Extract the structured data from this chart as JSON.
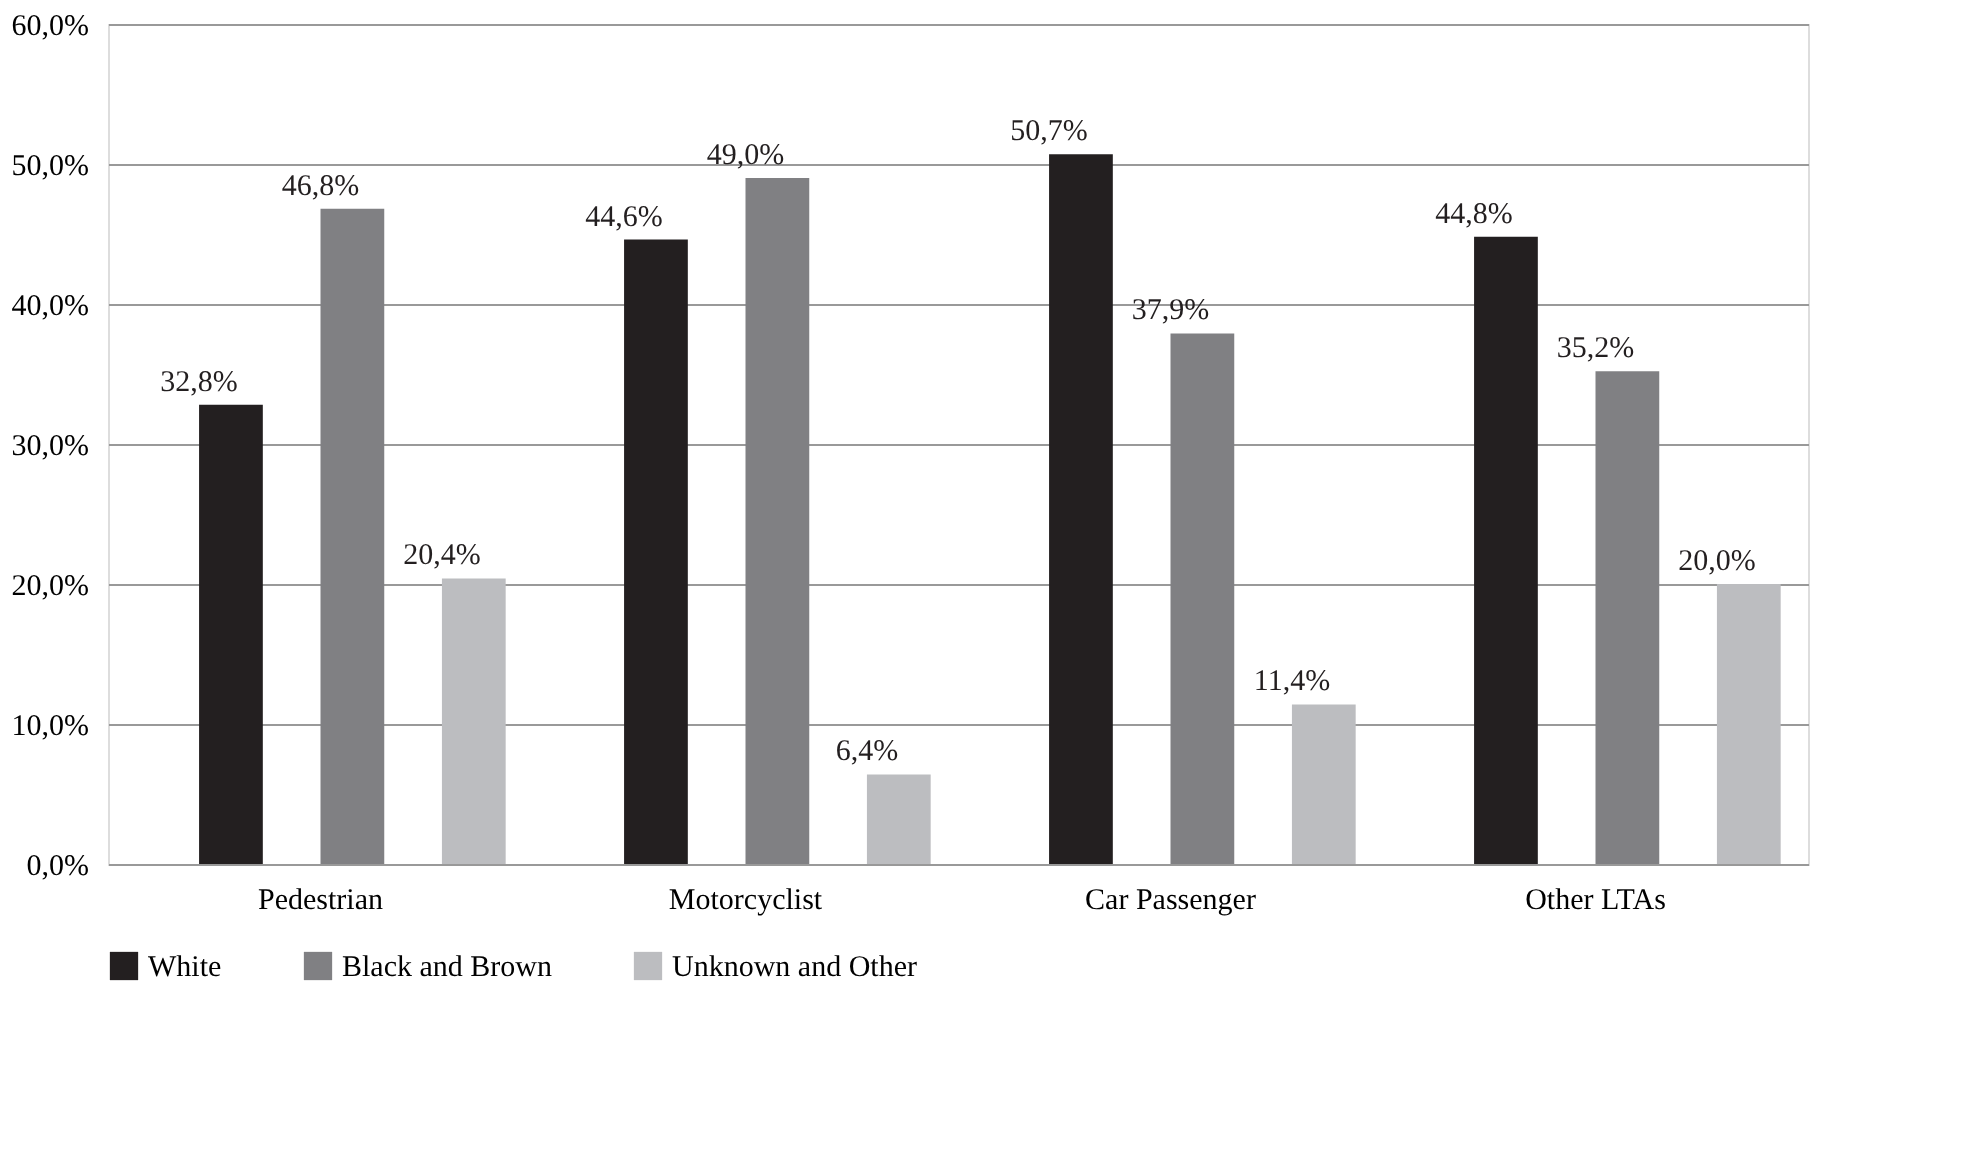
{
  "chart_data": {
    "type": "bar",
    "categories": [
      "Pedestrian",
      "Motorcyclist",
      "Car Passenger",
      "Other LTAs"
    ],
    "series": [
      {
        "name": "White",
        "color": "#231f20",
        "values": [
          32.8,
          44.6,
          50.7,
          44.8
        ],
        "value_labels": [
          "32,8%",
          "44,6%",
          "50,7%",
          "44,8%"
        ]
      },
      {
        "name": "Black and Brown",
        "color": "#808083",
        "values": [
          46.8,
          49.0,
          37.9,
          35.2
        ],
        "value_labels": [
          "46,8%",
          "49,0%",
          "37,9%",
          "35,2%"
        ]
      },
      {
        "name": "Unknown and Other",
        "color": "#bcbdc0",
        "values": [
          20.4,
          6.4,
          11.4,
          20.0
        ],
        "value_labels": [
          "20,4%",
          "6,4%",
          "11,4%",
          "20,0%"
        ]
      }
    ],
    "ylim": [
      0,
      60
    ],
    "yticks": [
      {
        "value": 0,
        "label": "0,0%"
      },
      {
        "value": 10,
        "label": "10,0%"
      },
      {
        "value": 20,
        "label": "20,0%"
      },
      {
        "value": 30,
        "label": "30,0%"
      },
      {
        "value": 40,
        "label": "40,0%"
      },
      {
        "value": 50,
        "label": "50,0%"
      },
      {
        "value": 60,
        "label": "60,0%"
      }
    ],
    "grid": "y",
    "legend": "bottom"
  }
}
